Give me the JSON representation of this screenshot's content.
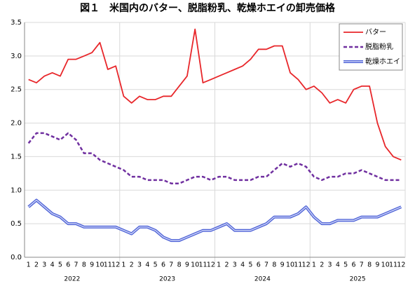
{
  "chart_data": {
    "type": "line",
    "title": "図１　米国内のバター、脱脂粉乳、乾燥ホエイの卸売価格",
    "categories": [
      "1",
      "2",
      "3",
      "4",
      "5",
      "6",
      "7",
      "8",
      "9",
      "10",
      "11",
      "12",
      "1",
      "2",
      "3",
      "4",
      "5",
      "6",
      "7",
      "8",
      "9",
      "10",
      "11",
      "12",
      "1",
      "2",
      "3",
      "4",
      "5",
      "6",
      "7",
      "8",
      "9",
      "10",
      "11",
      "12",
      "1",
      "2",
      "3",
      "4",
      "5",
      "6",
      "7",
      "8",
      "9",
      "10",
      "11",
      "12"
    ],
    "years": [
      "2022",
      "2023",
      "2024",
      "2025"
    ],
    "series": [
      {
        "name": "バター",
        "color": "#e8262a",
        "style": "solid",
        "values": [
          2.65,
          2.6,
          2.7,
          2.75,
          2.7,
          2.95,
          2.95,
          3.0,
          3.05,
          3.2,
          2.8,
          2.85,
          2.4,
          2.3,
          2.4,
          2.35,
          2.35,
          2.4,
          2.4,
          2.55,
          2.7,
          3.4,
          2.6,
          2.65,
          2.7,
          2.75,
          2.8,
          2.85,
          2.95,
          3.1,
          3.1,
          3.15,
          3.15,
          2.75,
          2.65,
          2.5,
          2.55,
          2.45,
          2.3,
          2.35,
          2.3,
          2.5,
          2.55,
          2.55,
          2.0,
          1.65,
          1.5,
          1.45
        ]
      },
      {
        "name": "脱脂粉乳",
        "color": "#7030a0",
        "style": "dashed",
        "values": [
          1.7,
          1.85,
          1.85,
          1.8,
          1.75,
          1.85,
          1.75,
          1.55,
          1.55,
          1.45,
          1.4,
          1.35,
          1.3,
          1.2,
          1.2,
          1.15,
          1.15,
          1.15,
          1.1,
          1.1,
          1.15,
          1.2,
          1.2,
          1.15,
          1.2,
          1.2,
          1.15,
          1.15,
          1.15,
          1.2,
          1.2,
          1.3,
          1.4,
          1.35,
          1.4,
          1.35,
          1.2,
          1.15,
          1.2,
          1.2,
          1.25,
          1.25,
          1.3,
          1.25,
          1.2,
          1.15,
          1.15,
          1.15
        ]
      },
      {
        "name": "乾燥ホエイ",
        "color": "#4a5fd6",
        "style": "double",
        "values": [
          0.75,
          0.85,
          0.75,
          0.65,
          0.6,
          0.5,
          0.5,
          0.45,
          0.45,
          0.45,
          0.45,
          0.45,
          0.4,
          0.35,
          0.45,
          0.45,
          0.4,
          0.3,
          0.25,
          0.25,
          0.3,
          0.35,
          0.4,
          0.4,
          0.45,
          0.5,
          0.4,
          0.4,
          0.4,
          0.45,
          0.5,
          0.6,
          0.6,
          0.6,
          0.65,
          0.75,
          0.6,
          0.5,
          0.5,
          0.55,
          0.55,
          0.55,
          0.6,
          0.6,
          0.6,
          0.65,
          0.7,
          0.75
        ]
      }
    ],
    "ylim": [
      0,
      3.5
    ],
    "yticks": [
      {
        "value": 0,
        "label": "0.0"
      },
      0.5,
      {
        "value": 1,
        "label": "1.0"
      },
      1.5,
      {
        "value": 2,
        "label": "2.0"
      },
      2.5,
      {
        "value": 3,
        "label": "3.0"
      },
      3.5
    ],
    "grid": true,
    "legend": "top-right"
  }
}
